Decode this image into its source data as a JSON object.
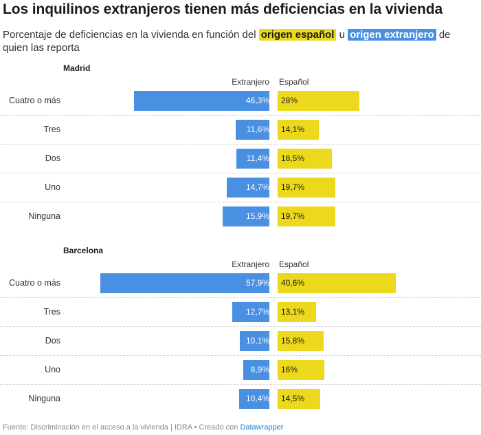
{
  "title": "Los inquilinos extranjeros tienen más deficiencias en la vivienda",
  "subtitle": {
    "before": "Porcentaje de deficiencias en la vivienda en función del",
    "spanish_tag": "origen español",
    "middle": "u",
    "foreign_tag": "origen extranjero",
    "after": "de quien las reporta"
  },
  "colors": {
    "extranjero": "#4a90e2",
    "espanol": "#ecd81c"
  },
  "chart_data": [
    {
      "type": "bar",
      "title": "Madrid",
      "categories": [
        "Cuatro o más",
        "Tres",
        "Dos",
        "Uno",
        "Ninguna"
      ],
      "series": [
        {
          "name": "Extranjero",
          "values": [
            46.3,
            11.6,
            11.4,
            14.7,
            15.9
          ],
          "labels": [
            "46,3%",
            "11,6%",
            "11,4%",
            "14,7%",
            "15,9%"
          ]
        },
        {
          "name": "Español",
          "values": [
            28,
            14.1,
            18.5,
            19.7,
            19.7
          ],
          "labels": [
            "28%",
            "14,1%",
            "18,5%",
            "19,7%",
            "19,7%"
          ]
        }
      ]
    },
    {
      "type": "bar",
      "title": "Barcelona",
      "categories": [
        "Cuatro o más",
        "Tres",
        "Dos",
        "Uno",
        "Ninguna"
      ],
      "series": [
        {
          "name": "Extranjero",
          "values": [
            57.9,
            12.7,
            10.1,
            8.9,
            10.4
          ],
          "labels": [
            "57,9%",
            "12,7%",
            "10,1%",
            "8,9%",
            "10,4%"
          ]
        },
        {
          "name": "Español",
          "values": [
            40.6,
            13.1,
            15.8,
            16,
            14.5
          ],
          "labels": [
            "40,6%",
            "13,1%",
            "15,8%",
            "16%",
            "14,5%"
          ]
        }
      ]
    }
  ],
  "footer": {
    "text": "Fuente: Discriminación en el acceso a la vivienda | IDRA • Creado con",
    "link": "Datawrapper"
  }
}
